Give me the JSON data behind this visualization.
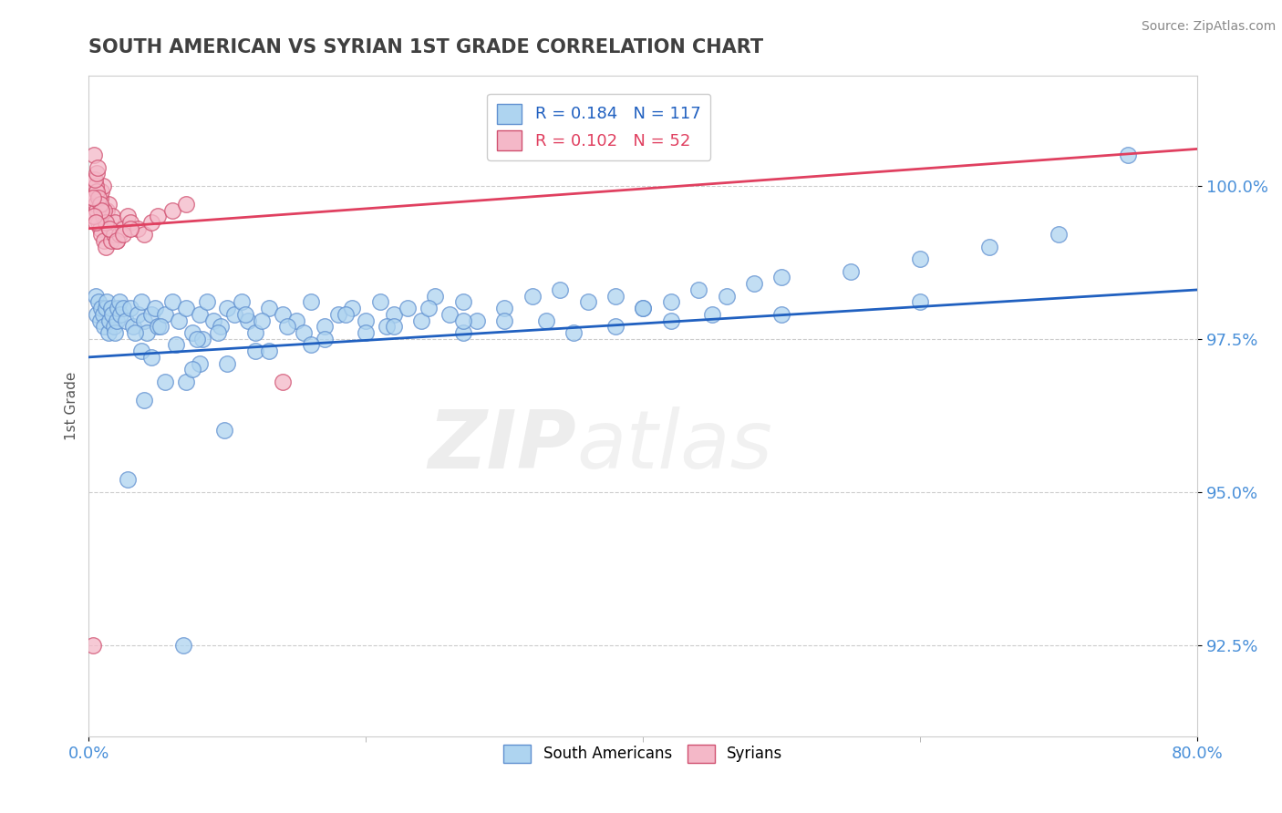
{
  "title": "SOUTH AMERICAN VS SYRIAN 1ST GRADE CORRELATION CHART",
  "source_text": "Source: ZipAtlas.com",
  "ylabel": "1st Grade",
  "watermark": "ZIPatlas",
  "legend_blue_label": "South Americans",
  "legend_pink_label": "Syrians",
  "blue_R": 0.184,
  "blue_N": 117,
  "pink_R": 0.102,
  "pink_N": 52,
  "blue_color": "#AED4F0",
  "pink_color": "#F4B8C8",
  "blue_edge_color": "#6090D0",
  "pink_edge_color": "#D05070",
  "blue_line_color": "#2060C0",
  "pink_line_color": "#E04060",
  "xlim": [
    0.0,
    80.0
  ],
  "ylim": [
    91.0,
    101.8
  ],
  "yticks": [
    92.5,
    95.0,
    97.5,
    100.0
  ],
  "ytick_labels": [
    "92.5%",
    "95.0%",
    "97.5%",
    "100.0%"
  ],
  "xticks": [
    0.0,
    80.0
  ],
  "xtick_labels": [
    "0.0%",
    "80.0%"
  ],
  "blue_scatter_x": [
    0.5,
    0.6,
    0.7,
    0.8,
    0.9,
    1.0,
    1.1,
    1.2,
    1.3,
    1.4,
    1.5,
    1.6,
    1.7,
    1.8,
    1.9,
    2.0,
    2.1,
    2.2,
    2.3,
    2.5,
    2.7,
    3.0,
    3.2,
    3.5,
    3.8,
    4.0,
    4.2,
    4.5,
    4.8,
    5.0,
    5.5,
    6.0,
    6.5,
    7.0,
    7.5,
    8.0,
    8.5,
    9.0,
    9.5,
    10.0,
    10.5,
    11.0,
    11.5,
    12.0,
    13.0,
    14.0,
    15.0,
    16.0,
    17.0,
    18.0,
    19.0,
    20.0,
    21.0,
    22.0,
    23.0,
    24.0,
    25.0,
    26.0,
    27.0,
    28.0,
    30.0,
    32.0,
    34.0,
    36.0,
    38.0,
    40.0,
    42.0,
    44.0,
    46.0,
    48.0,
    50.0,
    55.0,
    60.0,
    65.0,
    70.0,
    75.0,
    3.3,
    5.2,
    8.2,
    12.5,
    15.5,
    18.5,
    21.5,
    24.5,
    6.3,
    9.3,
    11.3,
    14.3,
    3.8,
    7.8,
    5.5,
    27.0,
    33.0,
    38.0,
    45.0,
    8.0,
    12.0,
    17.0,
    22.0,
    27.0,
    35.0,
    42.0,
    50.0,
    60.0,
    4.0,
    7.0,
    10.0,
    13.0,
    16.0,
    20.0,
    30.0,
    40.0,
    2.8,
    6.8,
    9.8,
    4.5,
    7.5
  ],
  "blue_scatter_y": [
    98.2,
    97.9,
    98.1,
    97.8,
    98.0,
    97.9,
    97.7,
    98.0,
    98.1,
    97.6,
    97.8,
    98.0,
    97.9,
    97.7,
    97.6,
    97.8,
    98.0,
    98.1,
    97.9,
    98.0,
    97.8,
    98.0,
    97.7,
    97.9,
    98.1,
    97.8,
    97.6,
    97.9,
    98.0,
    97.7,
    97.9,
    98.1,
    97.8,
    98.0,
    97.6,
    97.9,
    98.1,
    97.8,
    97.7,
    98.0,
    97.9,
    98.1,
    97.8,
    97.6,
    98.0,
    97.9,
    97.8,
    98.1,
    97.7,
    97.9,
    98.0,
    97.8,
    98.1,
    97.9,
    98.0,
    97.8,
    98.2,
    97.9,
    98.1,
    97.8,
    98.0,
    98.2,
    98.3,
    98.1,
    98.2,
    98.0,
    98.1,
    98.3,
    98.2,
    98.4,
    98.5,
    98.6,
    98.8,
    99.0,
    99.2,
    100.5,
    97.6,
    97.7,
    97.5,
    97.8,
    97.6,
    97.9,
    97.7,
    98.0,
    97.4,
    97.6,
    97.9,
    97.7,
    97.3,
    97.5,
    96.8,
    97.6,
    97.8,
    97.7,
    97.9,
    97.1,
    97.3,
    97.5,
    97.7,
    97.8,
    97.6,
    97.8,
    97.9,
    98.1,
    96.5,
    96.8,
    97.1,
    97.3,
    97.4,
    97.6,
    97.8,
    98.0,
    95.2,
    92.5,
    96.0,
    97.2,
    97.0
  ],
  "pink_scatter_x": [
    0.3,
    0.4,
    0.5,
    0.6,
    0.7,
    0.8,
    0.9,
    1.0,
    1.1,
    1.2,
    1.3,
    1.4,
    1.5,
    1.6,
    1.7,
    1.8,
    1.9,
    2.0,
    2.2,
    2.5,
    2.8,
    3.0,
    3.5,
    4.0,
    4.5,
    5.0,
    6.0,
    7.0,
    0.8,
    0.9,
    1.0,
    1.1,
    1.2,
    0.4,
    0.5,
    0.6,
    0.7,
    0.8,
    0.9,
    0.35,
    0.45,
    0.55,
    0.65,
    1.5,
    2.0,
    2.5,
    3.0,
    0.3,
    0.4,
    0.5,
    14.0,
    0.3
  ],
  "pink_scatter_y": [
    99.8,
    99.5,
    99.7,
    99.6,
    99.4,
    99.3,
    99.2,
    99.5,
    99.1,
    99.0,
    99.6,
    99.7,
    99.3,
    99.1,
    99.5,
    99.2,
    99.4,
    99.1,
    99.2,
    99.3,
    99.5,
    99.4,
    99.3,
    99.2,
    99.4,
    99.5,
    99.6,
    99.7,
    99.8,
    99.9,
    100.0,
    99.6,
    99.4,
    100.1,
    100.0,
    99.9,
    99.8,
    99.7,
    99.6,
    100.5,
    100.1,
    100.2,
    100.3,
    99.3,
    99.1,
    99.2,
    99.3,
    99.8,
    99.5,
    99.4,
    96.8,
    92.5
  ],
  "blue_trendline_x": [
    0.0,
    80.0
  ],
  "blue_trendline_y": [
    97.2,
    98.3
  ],
  "pink_trendline_x": [
    0.0,
    80.0
  ],
  "pink_trendline_y": [
    99.3,
    100.6
  ],
  "background_color": "#ffffff",
  "grid_color": "#cccccc",
  "title_color": "#404040",
  "axis_label_color": "#555555",
  "ytick_color": "#4A90D9",
  "xtick_color": "#4A90D9"
}
